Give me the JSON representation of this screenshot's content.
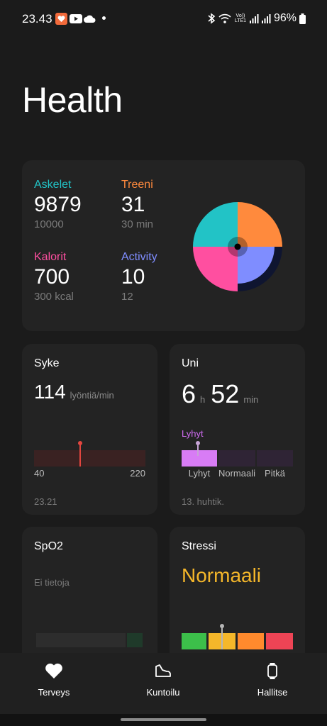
{
  "status_bar": {
    "time": "23.43",
    "battery": "96%",
    "network": "Vo)) LTE1"
  },
  "header": {
    "title": "Health"
  },
  "summary": {
    "steps": {
      "label": "Askelet",
      "value": "9879",
      "goal": "10000",
      "color": "#22c3c6"
    },
    "training": {
      "label": "Treeni",
      "value": "31",
      "goal": "30 min",
      "color": "#ff8a3d"
    },
    "calories": {
      "label": "Kalorit",
      "value": "700",
      "goal": "300 kcal",
      "color": "#ff4fa0"
    },
    "activity": {
      "label": "Activity",
      "value": "10",
      "goal": "12",
      "color": "#7f8dff"
    }
  },
  "heart_rate": {
    "title": "Syke",
    "value": "114",
    "unit": "lyöntiä/min",
    "range_min": "40",
    "range_max": "220",
    "current": 114,
    "min": 40,
    "max": 220,
    "timestamp": "23.21"
  },
  "sleep": {
    "title": "Uni",
    "hours": "6",
    "hours_unit": "h",
    "minutes": "52",
    "minutes_unit": "min",
    "quality_label": "Lyhyt",
    "segments": [
      "Lyhyt",
      "Normaali",
      "Pitkä"
    ],
    "date": "13. huhtik."
  },
  "spo2": {
    "title": "SpO2",
    "no_data": "Ei tietoja"
  },
  "stress": {
    "title": "Stressi",
    "level": "Normaali"
  },
  "nav": {
    "health": "Terveys",
    "workout": "Kuntoilu",
    "manage": "Hallitse"
  }
}
